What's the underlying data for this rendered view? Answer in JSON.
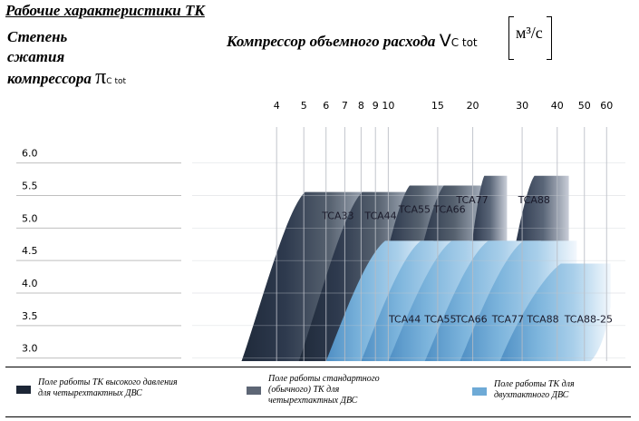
{
  "title": "Рабочие характеристики ТК",
  "y_axis": {
    "label_lines": [
      "Степень",
      "сжатия",
      "компрессора"
    ],
    "symbol": "π",
    "symbol_sub": "C tot"
  },
  "x_axis": {
    "label": "Компрессор объемного расхода",
    "symbol": "V",
    "symbol_sub": "C tot",
    "unit": "м³/с"
  },
  "chart_data": {
    "type": "area",
    "x_scale": "log",
    "xlim": [
      2,
      70
    ],
    "ylim": [
      2.8,
      6.4
    ],
    "x_ticks": [
      4,
      5,
      6,
      7,
      8,
      9,
      10,
      15,
      20,
      30,
      40,
      50,
      60
    ],
    "y_ticks": [
      "3.0",
      "3.5",
      "4.0",
      "4.5",
      "5.0",
      "5.5",
      "6.0"
    ],
    "y_tick_values": [
      3.0,
      3.5,
      4.0,
      4.5,
      5.0,
      5.5,
      6.0
    ],
    "grid": true,
    "series": [
      {
        "name": "Поле работы ТК высокого давления для четырехтактных ДВС",
        "color": "#2a3446",
        "regions": [
          {
            "label": "TCA 77",
            "x_start": 17.5,
            "x_end": 26.5,
            "y_top": 5.65
          },
          {
            "label": "TCA 88",
            "x_start": 23.5,
            "x_end": 44,
            "y_top": 5.65
          }
        ]
      },
      {
        "name": "Поле работы стандартного (обычного) ТК для четырехтактных ДВС",
        "color": "#2d3a4d",
        "regions": [
          {
            "label": "TCA 33",
            "x_start": 3.0,
            "x_end": 8.8,
            "y_top": 5.4
          },
          {
            "label": "TCA 44",
            "x_start": 4.8,
            "x_end": 12.5,
            "y_top": 5.4
          },
          {
            "label": "TCA 55",
            "x_start": 8.0,
            "x_end": 16.5,
            "y_top": 5.5
          },
          {
            "label": "TCA 66",
            "x_start": 10.5,
            "x_end": 22.0,
            "y_top": 5.5
          }
        ]
      },
      {
        "name": "Поле работы ТК для двухтактного ДВС",
        "color": "#7cb4dc",
        "regions": [
          {
            "label": "TCA 44",
            "x_start": 6.0,
            "x_end": 14.5,
            "y_top": 4.65
          },
          {
            "label": "TCA 55",
            "x_start": 8.0,
            "x_end": 19.5,
            "y_top": 4.65
          },
          {
            "label": "TCA 66",
            "x_start": 10.0,
            "x_end": 26.0,
            "y_top": 4.65
          },
          {
            "label": "TCA 77",
            "x_start": 13.5,
            "x_end": 35.0,
            "y_top": 4.65
          },
          {
            "label": "TCA 88",
            "x_start": 18.0,
            "x_end": 47.0,
            "y_top": 4.65
          },
          {
            "label": "TCA 88-25",
            "x_start": 25.0,
            "x_end": 62.0,
            "y_top": 4.3
          }
        ]
      }
    ]
  },
  "legend": [
    {
      "text_lines": [
        "Поле работы ТК высокого давления",
        "для четырехтактных ДВС"
      ],
      "color": "#1c2636"
    },
    {
      "text_lines": [
        "Поле работы стандартного",
        "(обычного) ТК для",
        "четырехтактных ДВС"
      ],
      "color": "#5d6675"
    },
    {
      "text_lines": [
        "Поле работы ТК для",
        "двухтактного ДВС"
      ],
      "color": "#6eaad6"
    }
  ]
}
